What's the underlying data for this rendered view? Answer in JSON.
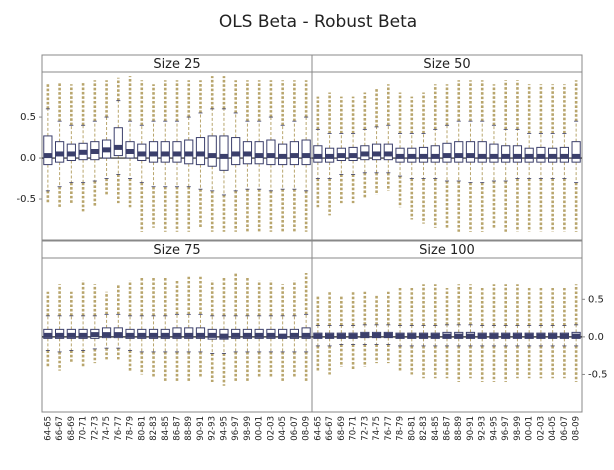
{
  "title": "OLS Beta - Robust Beta",
  "categories": [
    "64-65",
    "66-67",
    "68-69",
    "70-71",
    "72-73",
    "74-75",
    "76-77",
    "78-79",
    "80-81",
    "82-83",
    "84-85",
    "86-87",
    "88-89",
    "90-91",
    "92-93",
    "94-95",
    "96-97",
    "98-99",
    "00-01",
    "02-03",
    "04-05",
    "06-07",
    "08-09"
  ],
  "ylim": [
    -1,
    1.05
  ],
  "yticks": [
    -0.5,
    {
      "value": 0,
      "label": "0.0"
    },
    0.5
  ],
  "colors": {
    "box": "#3b3f6b",
    "outlier": "#b8a56c"
  },
  "chart_data": [
    {
      "type": "box",
      "title": "Size 25",
      "q1": [
        -0.08,
        -0.05,
        -0.03,
        -0.02,
        -0.02,
        0,
        0.03,
        0,
        -0.03,
        -0.05,
        -0.05,
        -0.05,
        -0.07,
        -0.08,
        -0.1,
        -0.15,
        -0.08,
        -0.07,
        -0.07,
        -0.08,
        -0.08,
        -0.08,
        -0.08
      ],
      "median": [
        0.03,
        0.05,
        0.05,
        0.07,
        0.08,
        0.1,
        0.13,
        0.08,
        0.05,
        0.05,
        0.05,
        0.05,
        0.05,
        0.05,
        0.03,
        0.02,
        0.05,
        0.05,
        0.03,
        0.03,
        0.02,
        0.03,
        0.03
      ],
      "q3": [
        0.27,
        0.2,
        0.17,
        0.18,
        0.2,
        0.22,
        0.37,
        0.2,
        0.17,
        0.2,
        0.2,
        0.2,
        0.22,
        0.25,
        0.27,
        0.27,
        0.25,
        0.2,
        0.2,
        0.22,
        0.17,
        0.2,
        0.22
      ],
      "whisker_low": [
        -0.4,
        -0.35,
        -0.3,
        -0.3,
        -0.28,
        -0.25,
        -0.2,
        -0.25,
        -0.3,
        -0.35,
        -0.35,
        -0.35,
        -0.35,
        -0.38,
        -0.4,
        -0.45,
        -0.4,
        -0.38,
        -0.38,
        -0.4,
        -0.38,
        -0.38,
        -0.4
      ],
      "whisker_high": [
        0.6,
        0.45,
        0.4,
        0.4,
        0.45,
        0.5,
        0.7,
        0.45,
        0.4,
        0.45,
        0.45,
        0.45,
        0.5,
        0.55,
        0.6,
        0.6,
        0.55,
        0.45,
        0.45,
        0.5,
        0.4,
        0.45,
        0.5
      ],
      "min": [
        -0.55,
        -0.6,
        -0.55,
        -0.65,
        -0.6,
        -0.45,
        -0.55,
        -0.6,
        -0.9,
        -0.85,
        -0.9,
        -0.9,
        -0.9,
        -0.85,
        -0.9,
        -0.9,
        -0.9,
        -0.9,
        -0.9,
        -0.9,
        -0.9,
        -0.9,
        -0.9
      ],
      "max": [
        0.9,
        0.92,
        0.9,
        0.92,
        0.95,
        0.95,
        0.98,
        1,
        0.95,
        0.9,
        0.95,
        0.95,
        0.95,
        0.95,
        1,
        1,
        0.95,
        0.95,
        0.95,
        0.95,
        0.95,
        0.95,
        0.95
      ]
    },
    {
      "type": "box",
      "title": "Size 50",
      "q1": [
        -0.05,
        -0.05,
        -0.03,
        -0.03,
        -0.02,
        -0.02,
        -0.02,
        -0.05,
        -0.05,
        -0.05,
        -0.05,
        -0.05,
        -0.05,
        -0.05,
        -0.05,
        -0.05,
        -0.05,
        -0.05,
        -0.05,
        -0.05,
        -0.05,
        -0.05,
        -0.05
      ],
      "median": [
        0.02,
        0.02,
        0.03,
        0.03,
        0.05,
        0.05,
        0.05,
        0.02,
        0.02,
        0.02,
        0.02,
        0.03,
        0.03,
        0.03,
        0.02,
        0.02,
        0.02,
        0.02,
        0.02,
        0.02,
        0.02,
        0.02,
        0.02
      ],
      "q3": [
        0.15,
        0.12,
        0.12,
        0.13,
        0.15,
        0.17,
        0.17,
        0.12,
        0.12,
        0.13,
        0.15,
        0.18,
        0.2,
        0.2,
        0.2,
        0.17,
        0.15,
        0.15,
        0.12,
        0.13,
        0.12,
        0.13,
        0.2
      ],
      "whisker_low": [
        -0.25,
        -0.25,
        -0.2,
        -0.2,
        -0.18,
        -0.18,
        -0.18,
        -0.22,
        -0.25,
        -0.25,
        -0.25,
        -0.28,
        -0.28,
        -0.3,
        -0.3,
        -0.28,
        -0.28,
        -0.25,
        -0.25,
        -0.25,
        -0.25,
        -0.25,
        -0.3
      ],
      "whisker_high": [
        0.35,
        0.3,
        0.3,
        0.3,
        0.35,
        0.38,
        0.4,
        0.3,
        0.3,
        0.3,
        0.35,
        0.4,
        0.45,
        0.45,
        0.45,
        0.4,
        0.35,
        0.35,
        0.3,
        0.3,
        0.3,
        0.3,
        0.45
      ],
      "min": [
        -0.6,
        -0.7,
        -0.55,
        -0.55,
        -0.5,
        -0.45,
        -0.4,
        -0.6,
        -0.75,
        -0.8,
        -0.85,
        -0.85,
        -0.9,
        -0.9,
        -0.9,
        -0.85,
        -0.9,
        -0.9,
        -0.9,
        -0.9,
        -0.9,
        -0.9,
        -0.9
      ],
      "max": [
        0.75,
        0.8,
        0.75,
        0.75,
        0.8,
        0.85,
        0.9,
        0.8,
        0.75,
        0.8,
        0.9,
        0.9,
        0.95,
        0.95,
        0.95,
        0.9,
        0.95,
        0.95,
        0.9,
        0.9,
        0.9,
        0.9,
        0.95
      ]
    },
    {
      "type": "box",
      "title": "Size 75",
      "q1": [
        -0.02,
        -0.02,
        -0.02,
        -0.02,
        -0.02,
        -0.01,
        -0.01,
        -0.02,
        -0.02,
        -0.02,
        -0.02,
        -0.02,
        -0.02,
        -0.02,
        -0.03,
        -0.03,
        -0.02,
        -0.02,
        -0.02,
        -0.02,
        -0.02,
        -0.02,
        -0.02
      ],
      "median": [
        0.02,
        0.02,
        0.02,
        0.02,
        0.03,
        0.03,
        0.03,
        0.02,
        0.02,
        0.02,
        0.02,
        0.02,
        0.02,
        0.02,
        0.02,
        0.01,
        0.02,
        0.02,
        0.02,
        0.02,
        0.01,
        0.02,
        0.02
      ],
      "q3": [
        0.1,
        0.1,
        0.1,
        0.1,
        0.1,
        0.12,
        0.12,
        0.1,
        0.1,
        0.1,
        0.1,
        0.12,
        0.12,
        0.12,
        0.1,
        0.1,
        0.1,
        0.1,
        0.1,
        0.1,
        0.1,
        0.1,
        0.12
      ],
      "whisker_low": [
        -0.18,
        -0.2,
        -0.18,
        -0.18,
        -0.16,
        -0.15,
        -0.15,
        -0.18,
        -0.2,
        -0.2,
        -0.2,
        -0.2,
        -0.2,
        -0.2,
        -0.22,
        -0.22,
        -0.2,
        -0.2,
        -0.2,
        -0.2,
        -0.2,
        -0.2,
        -0.2
      ],
      "whisker_high": [
        0.28,
        0.28,
        0.28,
        0.28,
        0.28,
        0.3,
        0.3,
        0.28,
        0.28,
        0.28,
        0.28,
        0.3,
        0.3,
        0.3,
        0.28,
        0.28,
        0.28,
        0.28,
        0.28,
        0.28,
        0.28,
        0.28,
        0.3
      ],
      "min": [
        -0.4,
        -0.45,
        -0.35,
        -0.4,
        -0.35,
        -0.3,
        -0.3,
        -0.45,
        -0.5,
        -0.55,
        -0.6,
        -0.6,
        -0.6,
        -0.55,
        -0.6,
        -0.65,
        -0.6,
        -0.6,
        -0.55,
        -0.55,
        -0.6,
        -0.55,
        -0.6
      ],
      "max": [
        0.6,
        0.7,
        0.6,
        0.75,
        0.7,
        0.6,
        0.7,
        0.75,
        0.8,
        0.8,
        0.8,
        0.75,
        0.8,
        0.8,
        0.75,
        0.8,
        0.85,
        0.8,
        0.75,
        0.75,
        0.7,
        0.75,
        0.85
      ]
    },
    {
      "type": "box",
      "title": "Size 100",
      "q1": [
        -0.02,
        -0.02,
        -0.02,
        -0.02,
        -0.01,
        -0.01,
        -0.01,
        -0.02,
        -0.02,
        -0.02,
        -0.02,
        -0.02,
        -0.02,
        -0.02,
        -0.02,
        -0.02,
        -0.02,
        -0.02,
        -0.02,
        -0.02,
        -0.02,
        -0.02,
        -0.02
      ],
      "median": [
        0.01,
        0.01,
        0.01,
        0.01,
        0.02,
        0.02,
        0.02,
        0.01,
        0.01,
        0.01,
        0.01,
        0.01,
        0.01,
        0.01,
        0.01,
        0.01,
        0.01,
        0.01,
        0.01,
        0.01,
        0.01,
        0.01,
        0.01
      ],
      "q3": [
        0.05,
        0.05,
        0.05,
        0.05,
        0.06,
        0.06,
        0.06,
        0.05,
        0.05,
        0.05,
        0.05,
        0.06,
        0.06,
        0.06,
        0.05,
        0.05,
        0.05,
        0.05,
        0.05,
        0.05,
        0.05,
        0.05,
        0.06
      ],
      "whisker_low": [
        -0.12,
        -0.12,
        -0.1,
        -0.1,
        -0.1,
        -0.1,
        -0.1,
        -0.12,
        -0.12,
        -0.12,
        -0.12,
        -0.12,
        -0.12,
        -0.12,
        -0.12,
        -0.12,
        -0.12,
        -0.12,
        -0.12,
        -0.12,
        -0.12,
        -0.12,
        -0.12
      ],
      "whisker_high": [
        0.15,
        0.15,
        0.15,
        0.15,
        0.16,
        0.16,
        0.16,
        0.15,
        0.15,
        0.15,
        0.15,
        0.16,
        0.16,
        0.16,
        0.15,
        0.15,
        0.15,
        0.15,
        0.15,
        0.15,
        0.15,
        0.15,
        0.16
      ],
      "min": [
        -0.45,
        -0.5,
        -0.4,
        -0.45,
        -0.4,
        -0.35,
        -0.35,
        -0.45,
        -0.5,
        -0.55,
        -0.55,
        -0.55,
        -0.6,
        -0.55,
        -0.6,
        -0.6,
        -0.6,
        -0.55,
        -0.55,
        -0.55,
        -0.55,
        -0.55,
        -0.6
      ],
      "max": [
        0.55,
        0.6,
        0.55,
        0.6,
        0.6,
        0.55,
        0.6,
        0.65,
        0.65,
        0.7,
        0.7,
        0.65,
        0.7,
        0.7,
        0.65,
        0.7,
        0.7,
        0.7,
        0.65,
        0.65,
        0.65,
        0.65,
        0.7
      ]
    }
  ]
}
